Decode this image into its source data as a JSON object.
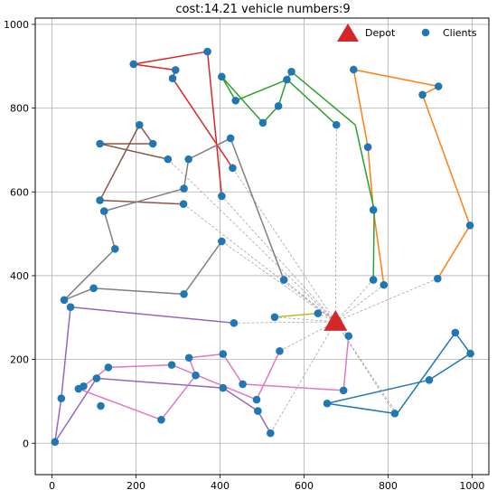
{
  "chart_data": {
    "type": "scatter",
    "title": "cost:14.21 vehicle numbers:9",
    "xlabel": "",
    "ylabel": "",
    "xlim": [
      -40,
      1040
    ],
    "ylim": [
      -75,
      1015
    ],
    "xticks": [
      0,
      200,
      400,
      600,
      800,
      1000
    ],
    "yticks": [
      0,
      200,
      400,
      600,
      800,
      1000
    ],
    "grid": true,
    "legend": {
      "position": "top-right",
      "entries": [
        {
          "label": "Depot",
          "marker": "triangle",
          "color": "#d62728"
        },
        {
          "label": "Clients",
          "marker": "circle",
          "color": "#1f77b4"
        }
      ]
    },
    "depot": {
      "x": 675,
      "y": 290
    },
    "routes": [
      {
        "color": "#ff7f0e",
        "points": [
          [
            675,
            290
          ],
          [
            790,
            378
          ],
          [
            765,
            557
          ],
          [
            752,
            707
          ],
          [
            718,
            892
          ],
          [
            920,
            852
          ],
          [
            882,
            832
          ],
          [
            995,
            520
          ],
          [
            918,
            393
          ],
          [
            675,
            290
          ]
        ]
      },
      {
        "color": "#2ca02c",
        "points": [
          [
            675,
            290
          ],
          [
            765,
            390
          ],
          [
            767,
            557
          ],
          [
            722,
            760
          ],
          [
            570,
            887
          ],
          [
            559,
            868
          ],
          [
            539,
            805
          ],
          [
            502,
            765
          ],
          [
            404,
            875
          ],
          [
            437,
            818
          ],
          [
            560,
            868
          ],
          [
            677,
            760
          ],
          [
            675,
            290
          ]
        ]
      },
      {
        "color": "#d62728",
        "points": [
          [
            675,
            290
          ],
          [
            404,
            590
          ],
          [
            370,
            935
          ],
          [
            194,
            905
          ],
          [
            294,
            891
          ],
          [
            287,
            871
          ],
          [
            430,
            657
          ],
          [
            675,
            290
          ]
        ]
      },
      {
        "color": "#8c564b",
        "points": [
          [
            675,
            290
          ],
          [
            313,
            571
          ],
          [
            114,
            580
          ],
          [
            208,
            760
          ],
          [
            240,
            715
          ],
          [
            114,
            715
          ],
          [
            276,
            678
          ],
          [
            675,
            290
          ]
        ]
      },
      {
        "color": "#7f7f7f",
        "points": [
          [
            675,
            290
          ],
          [
            552,
            390
          ],
          [
            425,
            728
          ],
          [
            325,
            678
          ],
          [
            314,
            608
          ],
          [
            124,
            554
          ],
          [
            150,
            464
          ],
          [
            29,
            342
          ],
          [
            99,
            370
          ],
          [
            314,
            356
          ],
          [
            404,
            482
          ],
          [
            675,
            290
          ]
        ]
      },
      {
        "color": "#bcbd22",
        "points": [
          [
            675,
            290
          ],
          [
            633,
            310
          ],
          [
            530,
            301
          ],
          [
            675,
            290
          ]
        ]
      },
      {
        "color": "#9467bd",
        "points": [
          [
            675,
            290
          ],
          [
            433,
            287
          ],
          [
            44,
            325
          ],
          [
            22,
            107
          ],
          [
            7,
            3
          ],
          [
            106,
            155
          ],
          [
            407,
            132
          ],
          [
            490,
            77
          ],
          [
            520,
            24
          ],
          [
            675,
            290
          ]
        ]
      },
      {
        "color": "#e377c2",
        "points": [
          [
            675,
            290
          ],
          [
            706,
            256
          ],
          [
            694,
            126
          ],
          [
            454,
            141
          ],
          [
            407,
            213
          ],
          [
            326,
            204
          ],
          [
            342,
            162
          ],
          [
            260,
            56
          ],
          [
            63,
            130
          ],
          [
            75,
            136
          ],
          [
            134,
            181
          ],
          [
            285,
            187
          ],
          [
            487,
            104
          ],
          [
            542,
            220
          ],
          [
            675,
            290
          ]
        ]
      },
      {
        "color": "#1f77b4",
        "points": [
          [
            675,
            290
          ],
          [
            816,
            71
          ],
          [
            655,
            95
          ],
          [
            898,
            151
          ],
          [
            996,
            214
          ],
          [
            960,
            264
          ],
          [
            821,
            70
          ],
          [
            675,
            290
          ]
        ]
      }
    ],
    "clients": [
      [
        7,
        3
      ],
      [
        22,
        107
      ],
      [
        29,
        342
      ],
      [
        44,
        325
      ],
      [
        63,
        130
      ],
      [
        75,
        136
      ],
      [
        99,
        370
      ],
      [
        106,
        155
      ],
      [
        114,
        580
      ],
      [
        114,
        715
      ],
      [
        116,
        89
      ],
      [
        124,
        554
      ],
      [
        134,
        181
      ],
      [
        150,
        464
      ],
      [
        194,
        905
      ],
      [
        208,
        760
      ],
      [
        240,
        715
      ],
      [
        260,
        56
      ],
      [
        276,
        678
      ],
      [
        285,
        187
      ],
      [
        287,
        871
      ],
      [
        294,
        891
      ],
      [
        313,
        571
      ],
      [
        314,
        608
      ],
      [
        314,
        356
      ],
      [
        325,
        678
      ],
      [
        326,
        204
      ],
      [
        342,
        162
      ],
      [
        370,
        935
      ],
      [
        404,
        590
      ],
      [
        404,
        875
      ],
      [
        404,
        482
      ],
      [
        407,
        132
      ],
      [
        407,
        213
      ],
      [
        425,
        728
      ],
      [
        430,
        657
      ],
      [
        433,
        287
      ],
      [
        437,
        818
      ],
      [
        454,
        141
      ],
      [
        487,
        104
      ],
      [
        490,
        77
      ],
      [
        502,
        765
      ],
      [
        520,
        24
      ],
      [
        530,
        301
      ],
      [
        539,
        805
      ],
      [
        542,
        220
      ],
      [
        552,
        390
      ],
      [
        559,
        868
      ],
      [
        570,
        887
      ],
      [
        633,
        310
      ],
      [
        655,
        95
      ],
      [
        677,
        760
      ],
      [
        706,
        256
      ],
      [
        694,
        126
      ],
      [
        718,
        892
      ],
      [
        752,
        707
      ],
      [
        765,
        557
      ],
      [
        765,
        390
      ],
      [
        790,
        378
      ],
      [
        816,
        71
      ],
      [
        882,
        832
      ],
      [
        898,
        151
      ],
      [
        918,
        393
      ],
      [
        920,
        852
      ],
      [
        960,
        264
      ],
      [
        995,
        520
      ],
      [
        996,
        214
      ]
    ]
  }
}
